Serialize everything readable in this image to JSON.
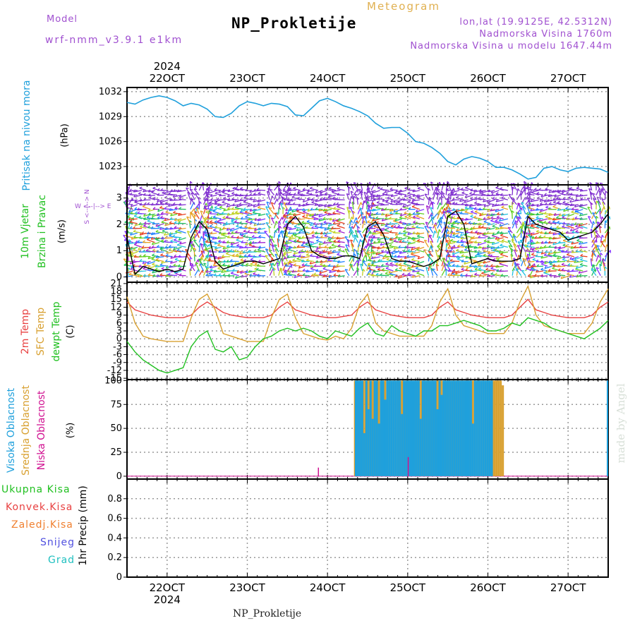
{
  "header": {
    "model_label": "Model",
    "model_name": "wrf-nmm_v3.9.1 e1km",
    "title": "NP_Prokletije",
    "meteogram": "Meteogram",
    "lonlat": "lon,lat (19.9125E, 42.5312N)",
    "elevation": "Nadmorska Visina 1760m",
    "model_elevation": "Nadmorska Visina u modelu 1647.44m",
    "footer": "NP_Prokletije",
    "watermark": "made by Angel"
  },
  "time_axis": {
    "year": "2024",
    "ticks": [
      "22OCT",
      "23OCT",
      "24OCT",
      "25OCT",
      "26OCT",
      "27OCT"
    ],
    "tick_positions": [
      22,
      23,
      24,
      25,
      26,
      27
    ],
    "range": [
      21.5,
      27.5
    ]
  },
  "colors": {
    "pressure": "#1fa0dc",
    "t2m": "#e84040",
    "sfc": "#d8a030",
    "dewpt": "#20c020",
    "high_cloud": "#1fa0dc",
    "mid_cloud": "#d8a030",
    "low_cloud": "#d01090"
  },
  "panels": {
    "pressure": {
      "label": "Pritisak na nivou mora",
      "unit": "(hPa)",
      "ticks": [
        "1032",
        "1029",
        "1026",
        "1023"
      ]
    },
    "wind": {
      "label1": "10m Vjetar",
      "label2": "Brzina i Pravac",
      "unit": "(m/s)",
      "compass": "W <--|--> E",
      "compass_ns": "S <--|--> N",
      "ticks": [
        "3",
        "2",
        "1",
        "0"
      ]
    },
    "temp": {
      "label1": "2m Temp",
      "label2": "SFC Temp",
      "label3": "dewpt Temp",
      "unit": "(C)",
      "ticks": [
        "21",
        "18",
        "15",
        "12",
        "9",
        "6",
        "3",
        "0",
        "-3",
        "-6",
        "-9",
        "-12",
        "-15"
      ]
    },
    "cloud": {
      "label1": "Visoka Oblacnost",
      "label2": "Srednja Oblacnost",
      "label3": "Niska Oblacnost",
      "unit": "(%)",
      "ticks": [
        "100",
        "75",
        "50",
        "25",
        "0"
      ]
    },
    "precip": {
      "unit": "1hr Precip (mm)",
      "legend": [
        "Ukupna Kisa",
        "Konvek.Kisa",
        "Zaledj.Kisa",
        "Snijeg",
        "Grad"
      ],
      "legend_colors": [
        "#20c020",
        "#e84040",
        "#f08030",
        "#5050e0",
        "#20c0c0"
      ],
      "ticks": [
        "0.8",
        "0.6",
        "0.4",
        "0.2",
        "0"
      ]
    }
  },
  "chart_data": [
    {
      "type": "line",
      "title": "Pritisak na nivou mora",
      "ylabel": "(hPa)",
      "ylim": [
        1020.8,
        1032.5
      ],
      "x": [
        21.5,
        21.6,
        21.7,
        21.8,
        21.9,
        22.0,
        22.1,
        22.2,
        22.3,
        22.4,
        22.5,
        22.6,
        22.7,
        22.8,
        22.9,
        23.0,
        23.1,
        23.2,
        23.3,
        23.4,
        23.5,
        23.6,
        23.7,
        23.8,
        23.9,
        24.0,
        24.1,
        24.2,
        24.3,
        24.4,
        24.5,
        24.6,
        24.7,
        24.8,
        24.9,
        25.0,
        25.1,
        25.2,
        25.3,
        25.4,
        25.5,
        25.6,
        25.7,
        25.8,
        25.9,
        26.0,
        26.1,
        26.2,
        26.3,
        26.4,
        26.5,
        26.6,
        26.7,
        26.8,
        26.9,
        27.0,
        27.1,
        27.2,
        27.3,
        27.4,
        27.5
      ],
      "y": [
        1030.7,
        1030.5,
        1031.0,
        1031.3,
        1031.5,
        1031.3,
        1030.9,
        1030.3,
        1030.6,
        1030.4,
        1029.9,
        1029.0,
        1028.9,
        1029.4,
        1030.3,
        1030.8,
        1030.6,
        1030.3,
        1030.6,
        1030.5,
        1030.2,
        1029.2,
        1029.1,
        1030.0,
        1030.9,
        1031.2,
        1030.8,
        1030.3,
        1030.0,
        1029.6,
        1029.1,
        1028.2,
        1027.6,
        1027.7,
        1027.7,
        1027.0,
        1026.0,
        1025.8,
        1025.3,
        1024.6,
        1023.6,
        1023.2,
        1023.9,
        1024.2,
        1024.0,
        1023.6,
        1022.9,
        1022.9,
        1022.6,
        1022.1,
        1021.5,
        1021.7,
        1022.8,
        1023.0,
        1022.6,
        1022.4,
        1022.8,
        1022.9,
        1022.8,
        1022.7,
        1022.3
      ]
    },
    {
      "type": "line",
      "title": "10m Vjetar Brzina i Pravac",
      "ylabel": "(m/s)",
      "ylim": [
        -0.2,
        3.5
      ],
      "series": [
        {
          "x": [
            21.5,
            21.6,
            21.7,
            21.8,
            21.9,
            22.0,
            22.1,
            22.2,
            22.3,
            22.4,
            22.5,
            22.6,
            22.7,
            22.8,
            22.9,
            23.0,
            23.1,
            23.2,
            23.3,
            23.4,
            23.5,
            23.6,
            23.7,
            23.8,
            23.9,
            24.0,
            24.1,
            24.2,
            24.3,
            24.4,
            24.5,
            24.6,
            24.7,
            24.8,
            24.9,
            25.0,
            25.1,
            25.2,
            25.3,
            25.4,
            25.5,
            25.6,
            25.7,
            25.8,
            25.9,
            26.0,
            26.1,
            26.2,
            26.3,
            26.4,
            26.5,
            26.6,
            26.7,
            26.8,
            26.9,
            27.0,
            27.1,
            27.2,
            27.3,
            27.4,
            27.5
          ],
          "y": [
            1.5,
            0.1,
            0.4,
            0.3,
            0.2,
            0.3,
            0.2,
            0.3,
            1.5,
            2.1,
            1.8,
            0.6,
            0.3,
            0.4,
            0.5,
            0.6,
            0.6,
            0.5,
            0.6,
            0.7,
            2.0,
            2.3,
            1.9,
            1.0,
            0.8,
            0.7,
            0.7,
            0.8,
            0.8,
            0.7,
            1.9,
            2.1,
            1.6,
            0.7,
            0.6,
            0.6,
            0.5,
            0.4,
            0.5,
            0.7,
            2.3,
            2.5,
            2.0,
            0.5,
            0.6,
            0.7,
            0.6,
            0.6,
            0.6,
            0.7,
            2.3,
            2.0,
            1.9,
            1.8,
            1.7,
            1.4,
            1.5,
            1.6,
            1.7,
            2.0,
            2.4
          ]
        }
      ]
    },
    {
      "type": "line",
      "title": "2m Temp / SFC Temp / dewpt Temp",
      "ylabel": "(C)",
      "ylim": [
        -15.5,
        21.5
      ],
      "x": [
        21.5,
        21.6,
        21.7,
        21.8,
        21.9,
        22.0,
        22.1,
        22.2,
        22.3,
        22.4,
        22.5,
        22.6,
        22.7,
        22.8,
        22.9,
        23.0,
        23.1,
        23.2,
        23.3,
        23.4,
        23.5,
        23.6,
        23.7,
        23.8,
        23.9,
        24.0,
        24.1,
        24.2,
        24.3,
        24.4,
        24.5,
        24.6,
        24.7,
        24.8,
        24.9,
        25.0,
        25.1,
        25.2,
        25.3,
        25.4,
        25.5,
        25.6,
        25.7,
        25.8,
        25.9,
        26.0,
        26.1,
        26.2,
        26.3,
        26.4,
        26.5,
        26.6,
        26.7,
        26.8,
        26.9,
        27.0,
        27.1,
        27.2,
        27.3,
        27.4,
        27.5
      ],
      "series": [
        {
          "name": "2m Temp",
          "values": [
            14,
            11,
            10,
            9,
            8.5,
            8,
            8,
            8,
            9,
            12,
            14,
            12,
            10,
            9,
            8.5,
            8,
            8,
            8,
            9,
            12,
            14,
            11,
            10,
            9,
            8.5,
            8,
            8,
            8.5,
            9,
            12,
            14,
            11,
            10,
            9,
            8.5,
            8,
            8,
            8,
            9,
            12,
            14,
            11,
            10,
            9,
            8.5,
            8,
            8,
            8,
            9,
            12,
            15,
            11,
            10,
            9,
            8.5,
            8,
            8,
            8,
            9,
            12,
            14
          ]
        },
        {
          "name": "SFC Temp",
          "values": [
            16,
            6,
            1,
            0,
            -0.5,
            -1,
            -1,
            -1,
            8,
            15,
            17,
            11,
            2,
            1,
            0,
            -1,
            -1,
            -1,
            8,
            15,
            17,
            8,
            2,
            1,
            0,
            -0.5,
            1,
            0,
            4,
            13,
            17,
            6,
            3,
            2,
            1,
            1,
            1,
            1,
            5,
            14,
            19,
            9,
            5,
            4,
            3,
            2,
            2,
            2,
            6,
            14,
            20,
            9,
            5,
            4,
            3,
            2,
            2,
            2,
            6,
            14,
            19
          ]
        },
        {
          "name": "dewpt Temp",
          "values": [
            -1,
            -5,
            -8,
            -10,
            -12,
            -13,
            -12,
            -11,
            -3,
            1,
            3,
            -4,
            -5,
            -3,
            -8,
            -7,
            -3,
            0,
            1,
            3,
            4,
            3,
            4,
            3,
            1,
            0,
            3,
            2,
            1,
            4,
            6,
            2,
            1,
            5,
            3,
            2,
            1,
            3,
            3,
            5,
            5,
            6,
            7,
            6,
            5,
            3,
            3,
            4,
            6,
            5,
            8,
            7,
            6,
            4,
            3,
            2,
            1,
            0,
            2,
            4,
            7
          ]
        }
      ]
    },
    {
      "type": "bar",
      "title": "Visoka / Srednja / Niska Oblacnost",
      "ylabel": "(%)",
      "ylim": [
        -3,
        101
      ],
      "series": [
        {
          "name": "Visoka Oblacnost",
          "x_range": [
            24.33,
            26.05
          ],
          "values": [
            100,
            100,
            100,
            100,
            45,
            100,
            70,
            100,
            60,
            100,
            100,
            55,
            100,
            100,
            80,
            100,
            100,
            100,
            100,
            100,
            100,
            100,
            65,
            100,
            100,
            100,
            100,
            100,
            100,
            100,
            100,
            60,
            100,
            100,
            100,
            100,
            100,
            100,
            100,
            70,
            100,
            85,
            100,
            100,
            100,
            100,
            100,
            100,
            100,
            100,
            100,
            100,
            100,
            100,
            100,
            100,
            55,
            100,
            100,
            100,
            100,
            100,
            100,
            100,
            100,
            100
          ]
        },
        {
          "name": "Srednja Oblacnost",
          "x_range": [
            24.33,
            26.2
          ],
          "values": [
            100,
            100,
            100,
            100,
            100,
            100,
            100,
            100,
            100,
            100,
            100,
            100,
            100,
            100,
            100,
            100,
            100,
            100,
            100,
            100,
            100,
            100,
            100,
            100,
            100,
            100,
            100,
            100,
            100,
            100,
            100,
            100,
            100,
            100,
            100,
            100,
            100,
            100,
            100,
            100,
            100,
            100,
            100,
            100,
            100,
            100,
            100,
            100,
            100,
            100,
            100,
            100,
            100,
            100,
            100,
            100,
            100,
            100,
            100,
            100,
            100,
            100,
            100,
            100,
            100,
            100,
            100,
            100,
            100,
            95
          ]
        },
        {
          "name": "Niska Oblacnost",
          "points": [
            [
              23.88,
              9
            ],
            [
              25.0,
              20
            ]
          ]
        }
      ]
    },
    {
      "type": "bar",
      "title": "1hr Precip",
      "ylabel": "1hr Precip (mm)",
      "ylim": [
        0,
        1.0
      ],
      "series": [
        {
          "name": "Ukupna Kisa",
          "values": []
        },
        {
          "name": "Konvek.Kisa",
          "values": []
        },
        {
          "name": "Zaledj.Kisa",
          "values": []
        },
        {
          "name": "Snijeg",
          "values": []
        },
        {
          "name": "Grad",
          "values": []
        }
      ]
    }
  ]
}
